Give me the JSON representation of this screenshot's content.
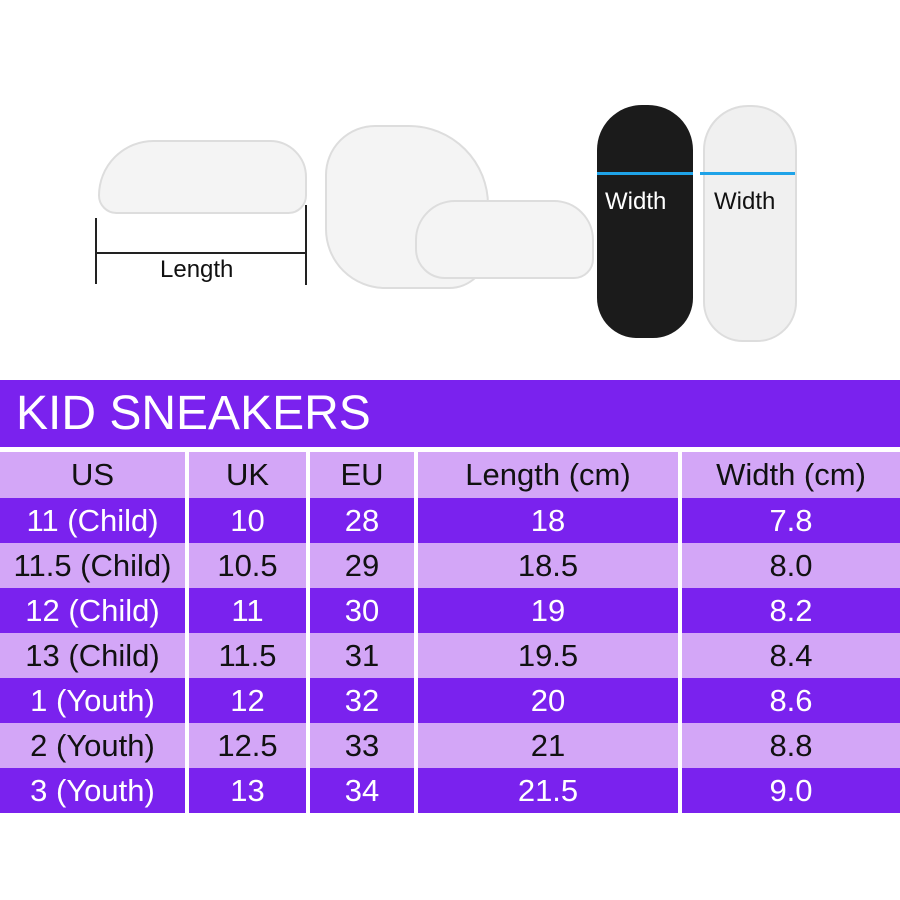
{
  "images": {
    "length_label": "Length",
    "width_label_left": "Width",
    "width_label_right": "Width"
  },
  "title": "KID SNEAKERS",
  "table": {
    "headers": [
      "US",
      "UK",
      "EU",
      "Length (cm)",
      "Width (cm)"
    ],
    "rows": [
      [
        "11 (Child)",
        "10",
        "28",
        "18",
        "7.8"
      ],
      [
        "11.5 (Child)",
        "10.5",
        "29",
        "18.5",
        "8.0"
      ],
      [
        "12 (Child)",
        "11",
        "30",
        "19",
        "8.2"
      ],
      [
        "13 (Child)",
        "11.5",
        "31",
        "19.5",
        "8.4"
      ],
      [
        "1 (Youth)",
        "12",
        "32",
        "20",
        "8.6"
      ],
      [
        "2 (Youth)",
        "12.5",
        "33",
        "21",
        "8.8"
      ],
      [
        "3 (Youth)",
        "13",
        "34",
        "21.5",
        "9.0"
      ]
    ]
  },
  "colors": {
    "dark": "#7a22ee",
    "light": "#d3a6f7",
    "measure_arrow": "#1fa3e8"
  }
}
